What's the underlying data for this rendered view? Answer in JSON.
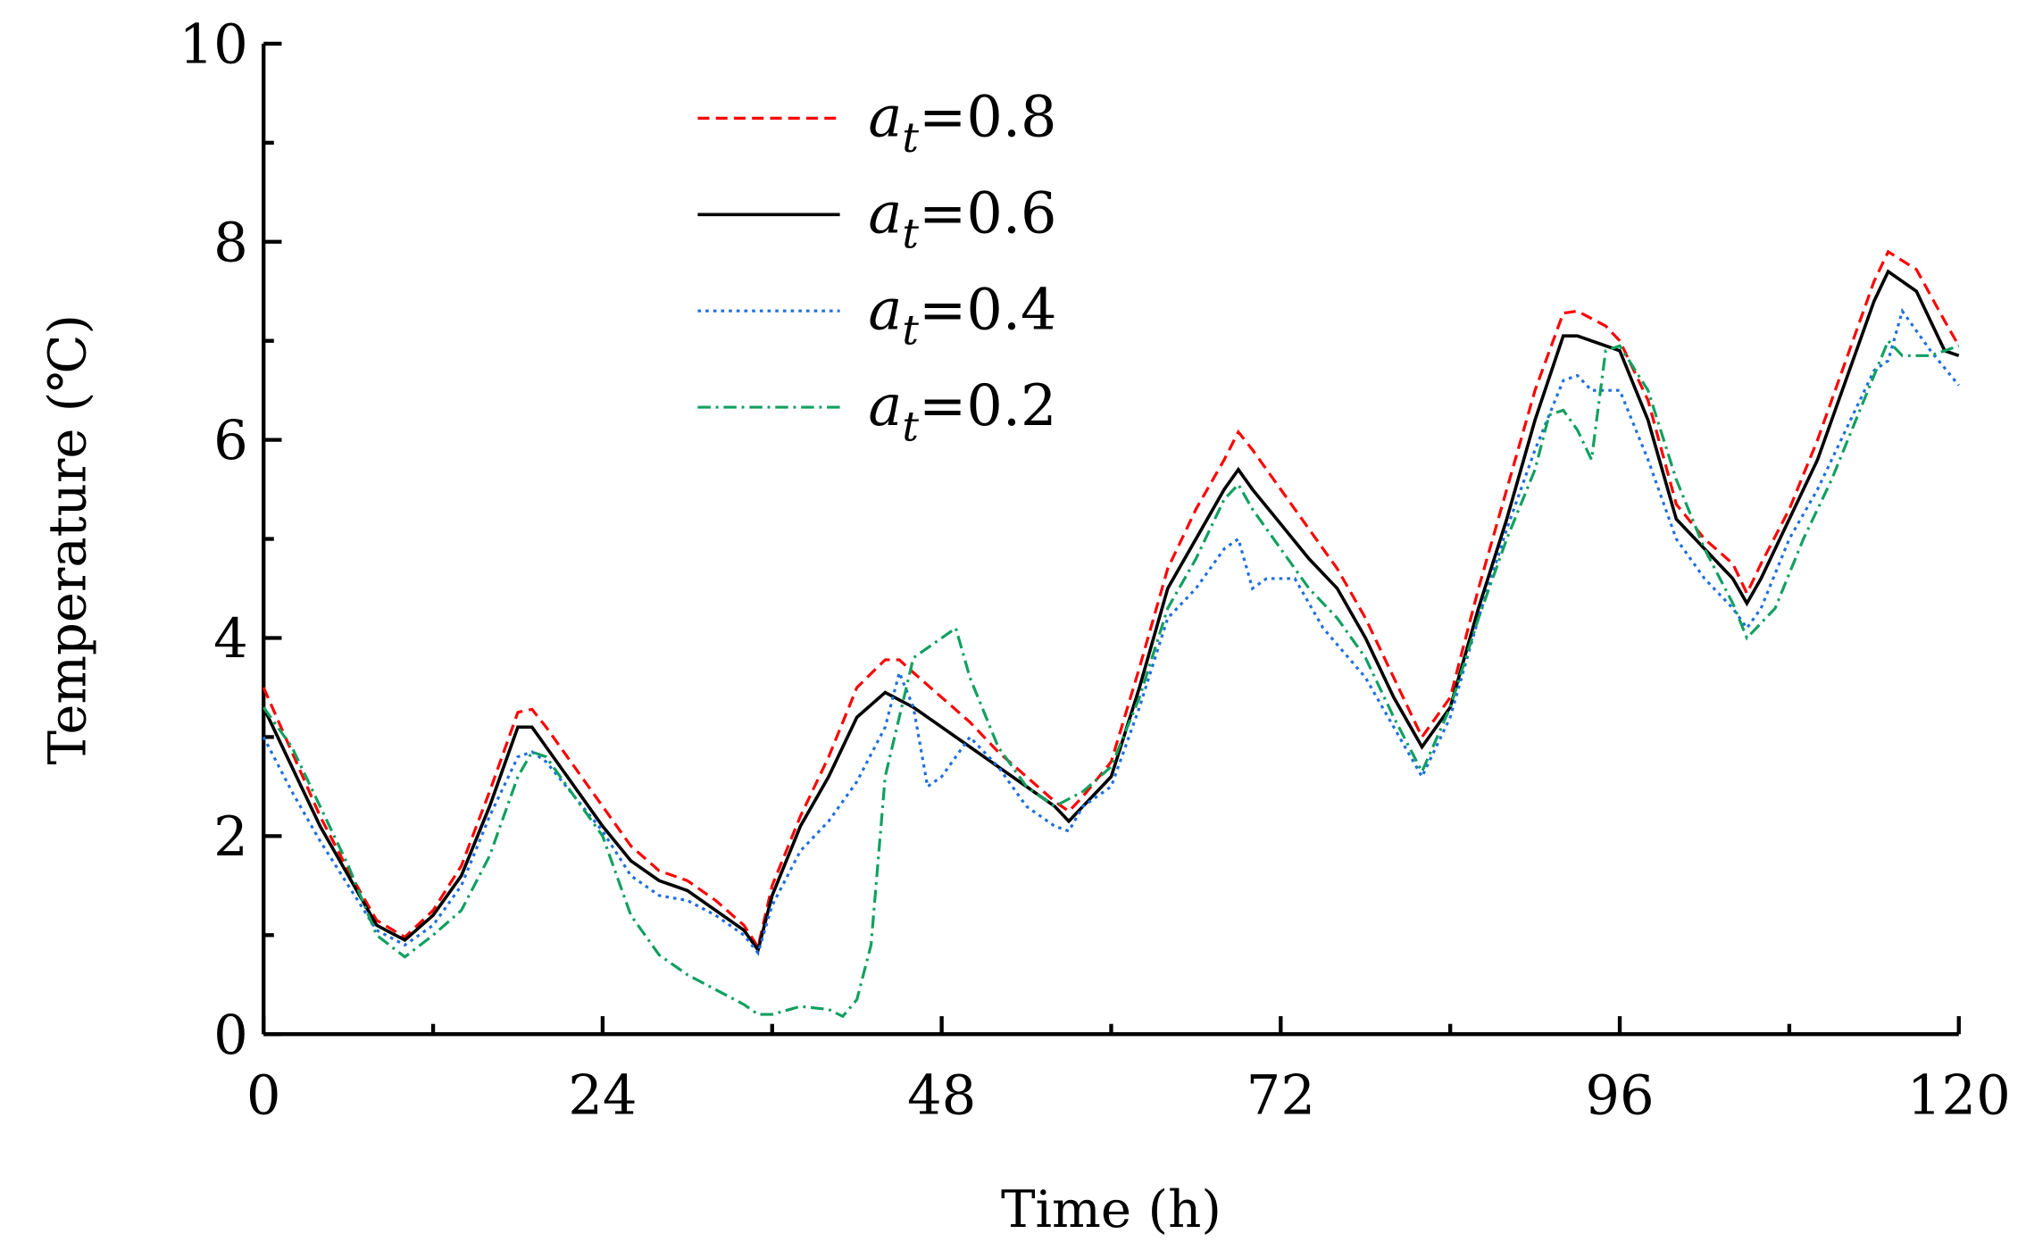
{
  "chart_data": {
    "type": "line",
    "xlabel": "Time (h)",
    "ylabel": "Temperature (℃)",
    "xlim": [
      0,
      120
    ],
    "xticks": [
      0,
      24,
      48,
      72,
      96,
      120
    ],
    "ylim": [
      0,
      10
    ],
    "yticks": [
      0,
      2,
      4,
      6,
      8,
      10
    ],
    "grid": false,
    "legend": "upper-center",
    "series": [
      {
        "name": "at=0.8",
        "color": "#ff0000",
        "style": "dashed",
        "x": [
          0,
          2,
          4,
          6,
          8,
          10,
          12,
          14,
          16,
          18,
          19,
          20,
          22,
          24,
          26,
          28,
          30,
          32,
          34,
          35,
          36,
          38,
          40,
          42,
          44,
          45,
          46,
          48,
          50,
          52,
          54,
          56,
          57,
          58,
          60,
          62,
          64,
          66,
          68,
          69,
          70,
          72,
          74,
          76,
          78,
          80,
          82,
          84,
          86,
          88,
          90,
          92,
          93,
          95,
          96,
          98,
          100,
          102,
          104,
          105,
          106,
          108,
          110,
          112,
          114,
          115,
          117,
          119,
          120
        ],
        "values": [
          3.5,
          2.85,
          2.2,
          1.65,
          1.15,
          0.98,
          1.25,
          1.7,
          2.45,
          3.25,
          3.28,
          3.1,
          2.7,
          2.3,
          1.9,
          1.65,
          1.55,
          1.35,
          1.1,
          0.88,
          1.5,
          2.2,
          2.8,
          3.5,
          3.78,
          3.78,
          3.65,
          3.4,
          3.15,
          2.85,
          2.6,
          2.35,
          2.25,
          2.4,
          2.75,
          3.7,
          4.7,
          5.3,
          5.8,
          6.08,
          5.9,
          5.5,
          5.1,
          4.7,
          4.2,
          3.6,
          3.0,
          3.4,
          4.5,
          5.5,
          6.5,
          7.28,
          7.3,
          7.15,
          7.0,
          6.4,
          5.35,
          5.0,
          4.75,
          4.45,
          4.75,
          5.3,
          6.0,
          6.8,
          7.6,
          7.9,
          7.72,
          7.2,
          6.95
        ]
      },
      {
        "name": "at=0.6",
        "color": "#000000",
        "style": "solid",
        "x": [
          0,
          2,
          4,
          6,
          8,
          10,
          12,
          14,
          16,
          18,
          19,
          20,
          22,
          24,
          26,
          28,
          30,
          32,
          34,
          35,
          36,
          38,
          40,
          42,
          44,
          46,
          48,
          50,
          52,
          54,
          56,
          57,
          58,
          60,
          62,
          64,
          66,
          68,
          69,
          70,
          72,
          74,
          76,
          78,
          80,
          82,
          84,
          86,
          88,
          90,
          92,
          93,
          96,
          98,
          100,
          102,
          104,
          105,
          106,
          108,
          110,
          112,
          114,
          115,
          117,
          119,
          120
        ],
        "values": [
          3.3,
          2.7,
          2.1,
          1.6,
          1.1,
          0.95,
          1.2,
          1.6,
          2.3,
          3.1,
          3.1,
          2.9,
          2.5,
          2.1,
          1.75,
          1.55,
          1.45,
          1.25,
          1.05,
          0.85,
          1.4,
          2.1,
          2.6,
          3.2,
          3.45,
          3.3,
          3.1,
          2.9,
          2.7,
          2.5,
          2.3,
          2.15,
          2.3,
          2.6,
          3.5,
          4.5,
          5.0,
          5.5,
          5.7,
          5.5,
          5.15,
          4.8,
          4.5,
          4.0,
          3.4,
          2.9,
          3.3,
          4.3,
          5.2,
          6.2,
          7.05,
          7.05,
          6.9,
          6.2,
          5.2,
          4.9,
          4.6,
          4.35,
          4.6,
          5.2,
          5.8,
          6.6,
          7.4,
          7.7,
          7.5,
          6.9,
          6.85
        ]
      },
      {
        "name": "at=0.4",
        "color": "#1f6fe0",
        "style": "dotted",
        "x": [
          0,
          2,
          4,
          6,
          8,
          10,
          12,
          14,
          16,
          18,
          19,
          20,
          22,
          24,
          26,
          28,
          30,
          32,
          34,
          35,
          36,
          38,
          40,
          42,
          44,
          45,
          46,
          47,
          48,
          50,
          52,
          54,
          56,
          57,
          58,
          60,
          62,
          64,
          66,
          68,
          69,
          70,
          71,
          73,
          75,
          78,
          80,
          82,
          84,
          86,
          88,
          90,
          92,
          93,
          94,
          96,
          98,
          100,
          102,
          104,
          105,
          106,
          108,
          110,
          112,
          114,
          115,
          116,
          118,
          120
        ],
        "values": [
          3.0,
          2.45,
          1.95,
          1.5,
          1.05,
          0.9,
          1.1,
          1.5,
          2.2,
          2.8,
          2.85,
          2.75,
          2.4,
          2.05,
          1.6,
          1.4,
          1.35,
          1.2,
          1.0,
          0.82,
          1.3,
          1.85,
          2.15,
          2.55,
          3.1,
          3.65,
          3.3,
          2.5,
          2.6,
          3.0,
          2.7,
          2.3,
          2.1,
          2.05,
          2.3,
          2.5,
          3.3,
          4.2,
          4.5,
          4.9,
          5.0,
          4.5,
          4.6,
          4.6,
          4.1,
          3.6,
          3.1,
          2.6,
          3.2,
          4.2,
          5.1,
          5.9,
          6.6,
          6.65,
          6.5,
          6.5,
          5.8,
          5.0,
          4.6,
          4.3,
          4.1,
          4.3,
          5.0,
          5.5,
          6.1,
          6.7,
          6.8,
          7.3,
          6.9,
          6.55
        ]
      },
      {
        "name": "at=0.2",
        "color": "#10a060",
        "style": "dashdot",
        "x": [
          0,
          2,
          4,
          6,
          8,
          10,
          12,
          14,
          16,
          18,
          19,
          20,
          22,
          24,
          26,
          28,
          30,
          32,
          34,
          35,
          36,
          38,
          40,
          41,
          42,
          43,
          44,
          46,
          48,
          49,
          50,
          52,
          54,
          56,
          58,
          60,
          62,
          64,
          66,
          68,
          69,
          70,
          72,
          74,
          76,
          78,
          80,
          82,
          84,
          86,
          88,
          90,
          91,
          92,
          93,
          94,
          95,
          96,
          98,
          100,
          102,
          104,
          105,
          107,
          109,
          111,
          113,
          115,
          116,
          118,
          120
        ],
        "values": [
          3.3,
          2.9,
          2.3,
          1.7,
          1.0,
          0.78,
          1.0,
          1.25,
          1.8,
          2.6,
          2.85,
          2.8,
          2.4,
          2.0,
          1.2,
          0.8,
          0.6,
          0.45,
          0.3,
          0.2,
          0.2,
          0.28,
          0.25,
          0.18,
          0.35,
          0.9,
          2.6,
          3.8,
          4.0,
          4.1,
          3.6,
          2.9,
          2.5,
          2.3,
          2.45,
          2.7,
          3.4,
          4.3,
          4.8,
          5.4,
          5.55,
          5.3,
          4.9,
          4.5,
          4.2,
          3.8,
          3.2,
          2.65,
          3.3,
          4.2,
          5.0,
          5.7,
          6.25,
          6.3,
          6.1,
          5.8,
          6.9,
          6.95,
          6.5,
          5.6,
          4.9,
          4.35,
          4.0,
          4.3,
          5.0,
          5.6,
          6.3,
          7.0,
          6.85,
          6.85,
          6.95
        ]
      }
    ]
  }
}
